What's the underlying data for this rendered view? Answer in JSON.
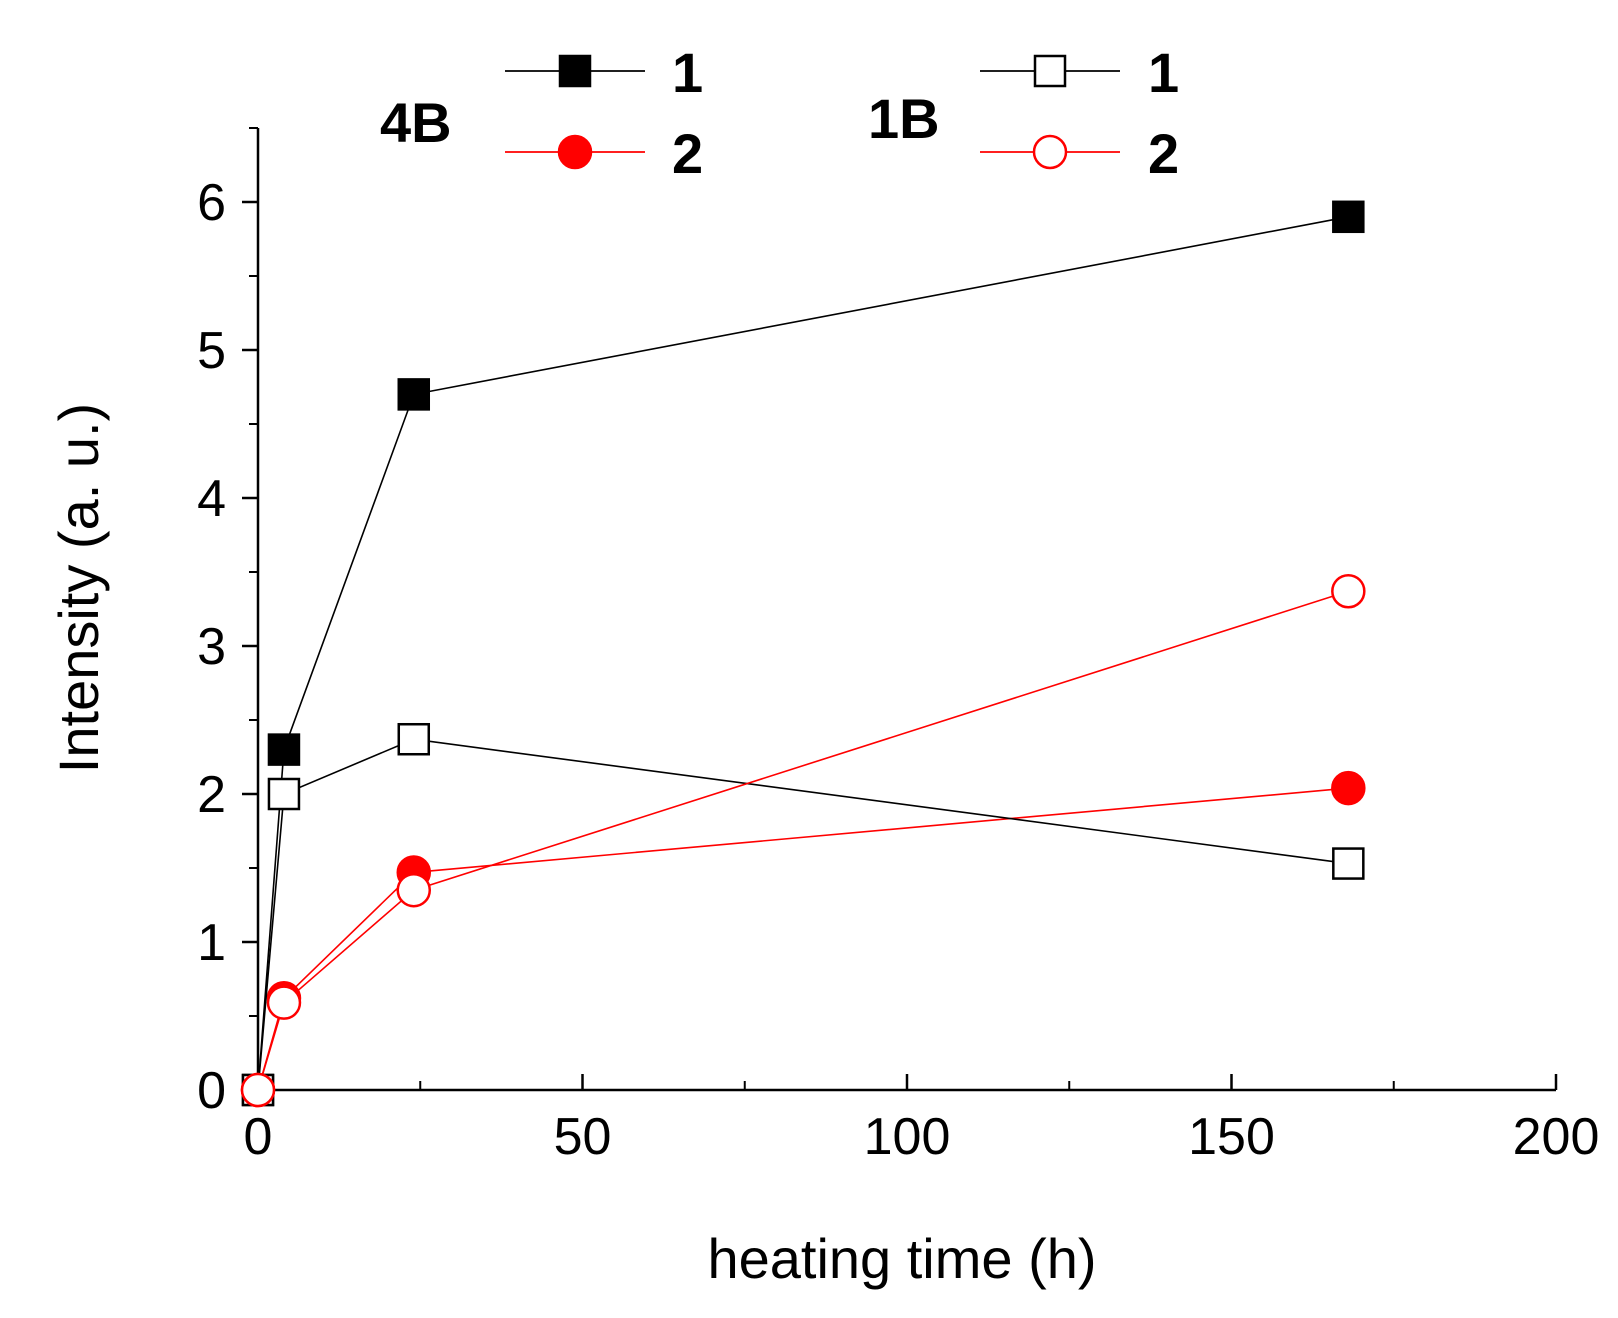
{
  "chart_data": {
    "type": "line",
    "title": "",
    "xlabel": "heating time (h)",
    "ylabel": "Intensity (a. u.)",
    "xlim": [
      0,
      200
    ],
    "ylim": [
      0,
      6.5
    ],
    "x_ticks": [
      0,
      50,
      100,
      150,
      200
    ],
    "x_tick_labels": [
      "0",
      "50",
      "100",
      "150",
      "200"
    ],
    "y_ticks": [
      0,
      1,
      2,
      3,
      4,
      5,
      6
    ],
    "y_tick_labels": [
      "0",
      "1",
      "2",
      "3",
      "4",
      "5",
      "6"
    ],
    "grid": false,
    "legend_groups": [
      {
        "label": "4B",
        "entries": [
          0,
          1
        ]
      },
      {
        "label": "1B",
        "entries": [
          2,
          3
        ]
      }
    ],
    "series": [
      {
        "name": "1",
        "group": "4B",
        "color": "#000000",
        "marker": "square",
        "filled": true,
        "x": [
          0,
          4,
          24,
          168
        ],
        "y": [
          0,
          2.3,
          4.7,
          5.9
        ]
      },
      {
        "name": "2",
        "group": "4B",
        "color": "#ff0000",
        "marker": "circle",
        "filled": true,
        "x": [
          0,
          4,
          24,
          168
        ],
        "y": [
          0,
          0.62,
          1.47,
          2.04
        ]
      },
      {
        "name": "1",
        "group": "1B",
        "color": "#000000",
        "marker": "square",
        "filled": false,
        "x": [
          0,
          4,
          24,
          168
        ],
        "y": [
          0,
          2.0,
          2.37,
          1.53
        ]
      },
      {
        "name": "2",
        "group": "1B",
        "color": "#ff0000",
        "marker": "circle",
        "filled": false,
        "x": [
          0,
          4,
          24,
          168
        ],
        "y": [
          0,
          0.59,
          1.35,
          3.37
        ]
      }
    ]
  }
}
